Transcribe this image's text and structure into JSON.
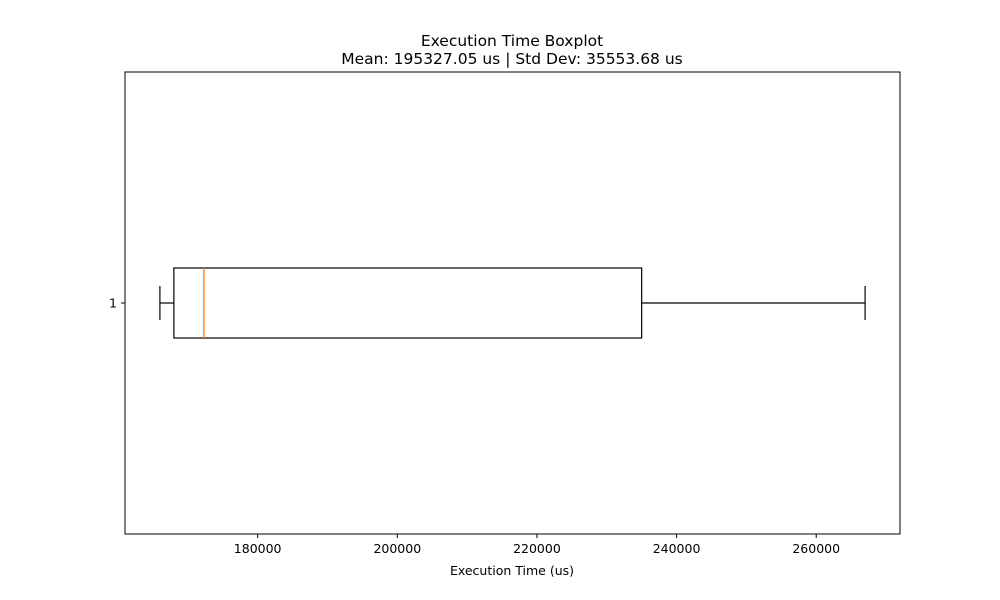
{
  "chart_data": {
    "type": "boxplot",
    "orientation": "horizontal",
    "title": "Execution Time Boxplot",
    "subtitle": "Mean: 195327.05 us | Std Dev: 35553.68 us",
    "xlabel": "Execution Time (us)",
    "ylabel": "",
    "xlim": [
      161000,
      272000
    ],
    "x_ticks": [
      180000,
      200000,
      220000,
      240000,
      260000
    ],
    "y_ticks": [
      "1"
    ],
    "grid": false,
    "boxes": [
      {
        "label": "1",
        "whisker_low": 166000,
        "q1": 168000,
        "median": 172300,
        "q3": 235000,
        "whisker_high": 267000
      }
    ],
    "colors": {
      "box": "#000000",
      "median": "#ff7f0e"
    }
  }
}
